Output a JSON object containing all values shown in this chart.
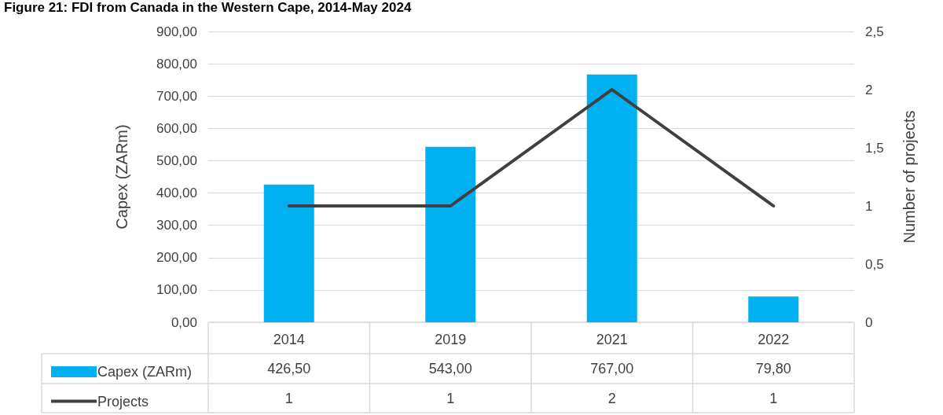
{
  "chart_data": {
    "type": "bar",
    "title": "Figure 21: FDI from Canada in the Western Cape, 2014-May 2024",
    "ylabel": "Capex (ZARm)",
    "y2label": "Number of projects",
    "categories": [
      "2014",
      "2019",
      "2021",
      "2022"
    ],
    "series": [
      {
        "name": "Capex (ZARm)",
        "color": "#00b0f0",
        "values": [
          426.5,
          543,
          767,
          79.8
        ],
        "value_labels": [
          "426,50",
          "543,00",
          "767,00",
          "79,80"
        ]
      },
      {
        "name": "Projects",
        "type": "line",
        "axis": "y2",
        "color": "#404040",
        "values": [
          1,
          1,
          2,
          1
        ],
        "value_labels": [
          "1",
          "1",
          "2",
          "1"
        ]
      }
    ],
    "ylim": [
      0,
      900
    ],
    "yticks": [
      {
        "value": 0,
        "label": "0,00"
      },
      {
        "value": 100,
        "label": "100,00"
      },
      {
        "value": 200,
        "label": "200,00"
      },
      {
        "value": 300,
        "label": "300,00"
      },
      {
        "value": 400,
        "label": "400,00"
      },
      {
        "value": 500,
        "label": "500,00"
      },
      {
        "value": 600,
        "label": "600,00"
      },
      {
        "value": 700,
        "label": "700,00"
      },
      {
        "value": 800,
        "label": "800,00"
      },
      {
        "value": 900,
        "label": "900,00"
      }
    ],
    "y2lim": [
      0,
      2.5
    ],
    "y2ticks": [
      0,
      {
        "value": 0.5,
        "label": "0,5"
      },
      1,
      {
        "value": 1.5,
        "label": "1,5"
      },
      2,
      {
        "value": 2.5,
        "label": "2,5"
      }
    ],
    "grid": "y",
    "legend": "bottom left",
    "marker": "none",
    "line_style": "solid"
  }
}
